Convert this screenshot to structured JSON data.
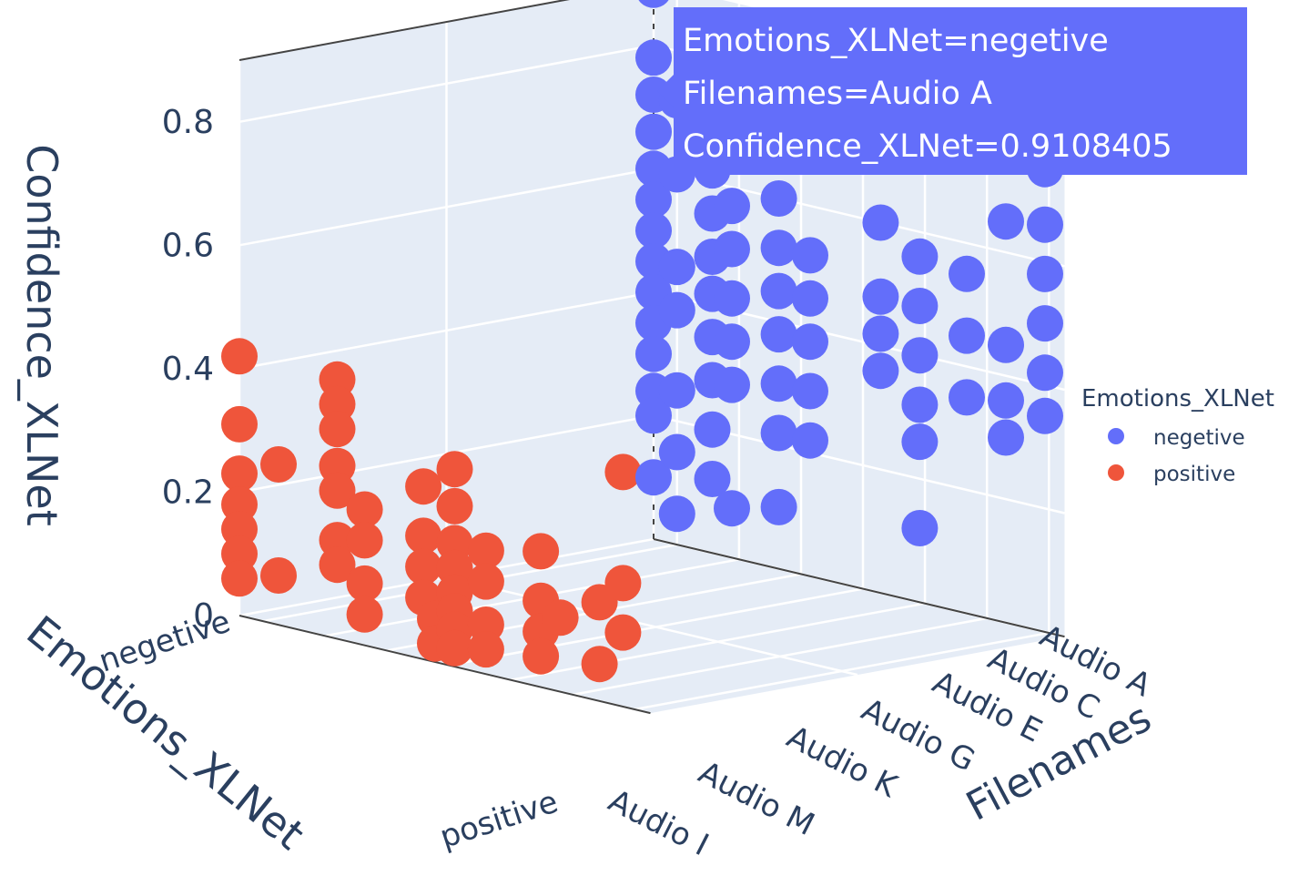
{
  "chart_data": {
    "type": "scatter",
    "projection": "3d",
    "axes": {
      "x": {
        "title": "Emotions_XLNet",
        "ticks": [
          "negetive",
          "positive"
        ]
      },
      "y": {
        "title": "Filenames",
        "ticks": [
          "Audio A",
          "Audio C",
          "Audio E",
          "Audio G",
          "Audio K",
          "Audio M",
          "Audio I"
        ]
      },
      "z": {
        "title": "Confidence_XLNet",
        "ticks": [
          "0",
          "0.2",
          "0.4",
          "0.6",
          "0.8"
        ]
      }
    },
    "legend": {
      "title": "Emotions_XLNet",
      "placement": "right"
    },
    "series": [
      {
        "name": "negetive",
        "color": "#636efa",
        "points": [
          [
            0.0,
            0.0,
            0.89
          ],
          [
            0.0,
            0.0,
            0.78
          ],
          [
            0.0,
            0.0,
            0.72
          ],
          [
            0.0,
            0.0,
            0.66
          ],
          [
            0.0,
            0.0,
            0.6
          ],
          [
            0.0,
            0.0,
            0.55
          ],
          [
            0.0,
            0.0,
            0.5
          ],
          [
            0.0,
            0.0,
            0.45
          ],
          [
            0.0,
            0.0,
            0.4
          ],
          [
            0.0,
            0.0,
            0.35
          ],
          [
            0.0,
            0.0,
            0.3
          ],
          [
            0.0,
            0.0,
            0.24
          ],
          [
            0.0,
            0.0,
            0.2
          ],
          [
            0.0,
            0.0,
            0.1
          ],
          [
            0.0,
            0.06,
            0.72
          ],
          [
            0.0,
            0.06,
            0.6
          ],
          [
            0.0,
            0.06,
            0.45
          ],
          [
            0.0,
            0.06,
            0.38
          ],
          [
            0.0,
            0.06,
            0.25
          ],
          [
            0.0,
            0.06,
            0.15
          ],
          [
            0.0,
            0.06,
            0.05
          ],
          [
            0.0,
            0.15,
            0.8
          ],
          [
            0.0,
            0.15,
            0.7
          ],
          [
            0.0,
            0.15,
            0.62
          ],
          [
            0.0,
            0.15,
            0.55
          ],
          [
            0.0,
            0.15,
            0.48
          ],
          [
            0.0,
            0.15,
            0.42
          ],
          [
            0.0,
            0.15,
            0.35
          ],
          [
            0.0,
            0.15,
            0.28
          ],
          [
            0.0,
            0.15,
            0.2
          ],
          [
            0.0,
            0.15,
            0.12
          ],
          [
            0.0,
            0.2,
            0.72
          ],
          [
            0.0,
            0.2,
            0.65
          ],
          [
            0.0,
            0.2,
            0.57
          ],
          [
            0.0,
            0.2,
            0.5
          ],
          [
            0.0,
            0.2,
            0.42
          ],
          [
            0.0,
            0.2,
            0.35
          ],
          [
            0.0,
            0.2,
            0.28
          ],
          [
            0.0,
            0.2,
            0.08
          ],
          [
            0.0,
            0.32,
            0.72
          ],
          [
            0.0,
            0.32,
            0.6
          ],
          [
            0.0,
            0.32,
            0.52
          ],
          [
            0.0,
            0.32,
            0.45
          ],
          [
            0.0,
            0.32,
            0.38
          ],
          [
            0.0,
            0.32,
            0.3
          ],
          [
            0.0,
            0.32,
            0.22
          ],
          [
            0.0,
            0.32,
            0.1
          ],
          [
            0.0,
            0.4,
            0.52
          ],
          [
            0.0,
            0.4,
            0.45
          ],
          [
            0.0,
            0.4,
            0.38
          ],
          [
            0.0,
            0.4,
            0.3
          ],
          [
            0.0,
            0.4,
            0.22
          ],
          [
            0.0,
            0.43,
            0.78
          ],
          [
            0.0,
            0.58,
            0.6
          ],
          [
            0.0,
            0.58,
            0.48
          ],
          [
            0.0,
            0.58,
            0.42
          ],
          [
            0.0,
            0.58,
            0.36
          ],
          [
            0.0,
            0.68,
            0.56
          ],
          [
            0.0,
            0.68,
            0.48
          ],
          [
            0.0,
            0.68,
            0.4
          ],
          [
            0.0,
            0.68,
            0.32
          ],
          [
            0.0,
            0.68,
            0.26
          ],
          [
            0.0,
            0.68,
            0.12
          ],
          [
            0.0,
            0.8,
            0.55
          ],
          [
            0.0,
            0.8,
            0.45
          ],
          [
            0.0,
            0.8,
            0.35
          ],
          [
            0.0,
            0.9,
            0.65
          ],
          [
            0.0,
            0.9,
            0.45
          ],
          [
            0.0,
            0.9,
            0.36
          ],
          [
            0.0,
            0.9,
            0.3
          ],
          [
            0.0,
            1.0,
            0.91
          ],
          [
            0.0,
            1.0,
            0.82
          ],
          [
            0.0,
            1.0,
            0.75
          ],
          [
            0.0,
            1.0,
            0.66
          ],
          [
            0.0,
            1.0,
            0.58
          ],
          [
            0.0,
            1.0,
            0.5
          ],
          [
            0.0,
            1.0,
            0.42
          ],
          [
            0.0,
            1.0,
            0.35
          ]
        ]
      },
      {
        "name": "positive",
        "color": "#ef553b",
        "points": [
          [
            1.0,
            0.0,
            0.42
          ],
          [
            1.0,
            0.0,
            0.31
          ],
          [
            1.0,
            0.0,
            0.23
          ],
          [
            1.0,
            0.0,
            0.18
          ],
          [
            1.0,
            0.0,
            0.14
          ],
          [
            1.0,
            0.0,
            0.1
          ],
          [
            1.0,
            0.0,
            0.06
          ],
          [
            1.0,
            0.1,
            0.26
          ],
          [
            1.0,
            0.1,
            0.08
          ],
          [
            1.0,
            0.25,
            0.42
          ],
          [
            1.0,
            0.25,
            0.38
          ],
          [
            1.0,
            0.25,
            0.34
          ],
          [
            1.0,
            0.25,
            0.28
          ],
          [
            1.0,
            0.25,
            0.24
          ],
          [
            1.0,
            0.25,
            0.16
          ],
          [
            1.0,
            0.25,
            0.12
          ],
          [
            1.0,
            0.32,
            0.22
          ],
          [
            1.0,
            0.32,
            0.17
          ],
          [
            1.0,
            0.32,
            0.1
          ],
          [
            1.0,
            0.32,
            0.05
          ],
          [
            1.0,
            0.47,
            0.28
          ],
          [
            1.0,
            0.47,
            0.2
          ],
          [
            1.0,
            0.47,
            0.15
          ],
          [
            1.0,
            0.47,
            0.1
          ],
          [
            1.0,
            0.5,
            0.07
          ],
          [
            1.0,
            0.5,
            0.03
          ],
          [
            1.0,
            0.55,
            0.32
          ],
          [
            1.0,
            0.55,
            0.26
          ],
          [
            1.0,
            0.55,
            0.2
          ],
          [
            1.0,
            0.55,
            0.16
          ],
          [
            1.0,
            0.55,
            0.12
          ],
          [
            1.0,
            0.55,
            0.09
          ],
          [
            1.0,
            0.55,
            0.06
          ],
          [
            1.0,
            0.55,
            0.03
          ],
          [
            1.0,
            0.63,
            0.2
          ],
          [
            1.0,
            0.63,
            0.15
          ],
          [
            1.0,
            0.63,
            0.08
          ],
          [
            1.0,
            0.63,
            0.04
          ],
          [
            1.0,
            0.77,
            0.22
          ],
          [
            1.0,
            0.77,
            0.14
          ],
          [
            1.0,
            0.77,
            0.09
          ],
          [
            1.0,
            0.77,
            0.05
          ],
          [
            1.0,
            0.82,
            0.12
          ],
          [
            1.0,
            0.92,
            0.16
          ],
          [
            1.0,
            0.92,
            0.06
          ],
          [
            1.0,
            0.98,
            0.38
          ],
          [
            1.0,
            0.98,
            0.2
          ],
          [
            1.0,
            0.98,
            0.12
          ]
        ]
      }
    ],
    "hover": {
      "lines": [
        "Emotions_XLNet=negetive",
        "Filenames=Audio A",
        "Confidence_XLNet=0.9108405"
      ],
      "point": [
        0.0,
        1.0,
        0.91
      ]
    }
  }
}
